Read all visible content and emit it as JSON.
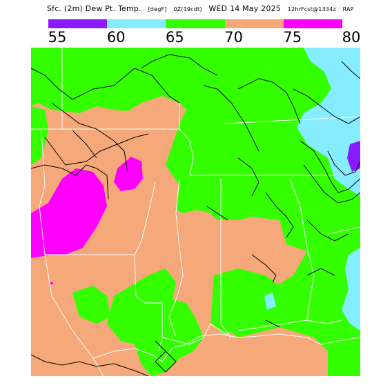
{
  "header": {
    "title_parts": [
      "Sfc. (2m) Dew Pt. Temp.",
      "[degF]",
      "0Z(19cdt)",
      "WED 14 May 2025",
      "12hrFcst@1334z",
      "RAP"
    ]
  },
  "legend": {
    "tick_labels": [
      "55",
      "60",
      "65",
      "70",
      "75",
      "80"
    ],
    "bins": [
      {
        "from": 55,
        "to": 60,
        "color": "#8a1aff"
      },
      {
        "from": 60,
        "to": 65,
        "color": "#86ecff"
      },
      {
        "from": 65,
        "to": 70,
        "color": "#33ff00"
      },
      {
        "from": 70,
        "to": 75,
        "color": "#f5a87a"
      },
      {
        "from": 75,
        "to": 80,
        "color": "#ff00ff"
      }
    ]
  },
  "colors": {
    "green": "#33ff00",
    "tan": "#f5a87a",
    "cyan": "#86ecff",
    "magenta": "#ff00ff",
    "purple": "#8a1aff",
    "white_lines": "#ffffff",
    "contour_lines": "#000000"
  }
}
